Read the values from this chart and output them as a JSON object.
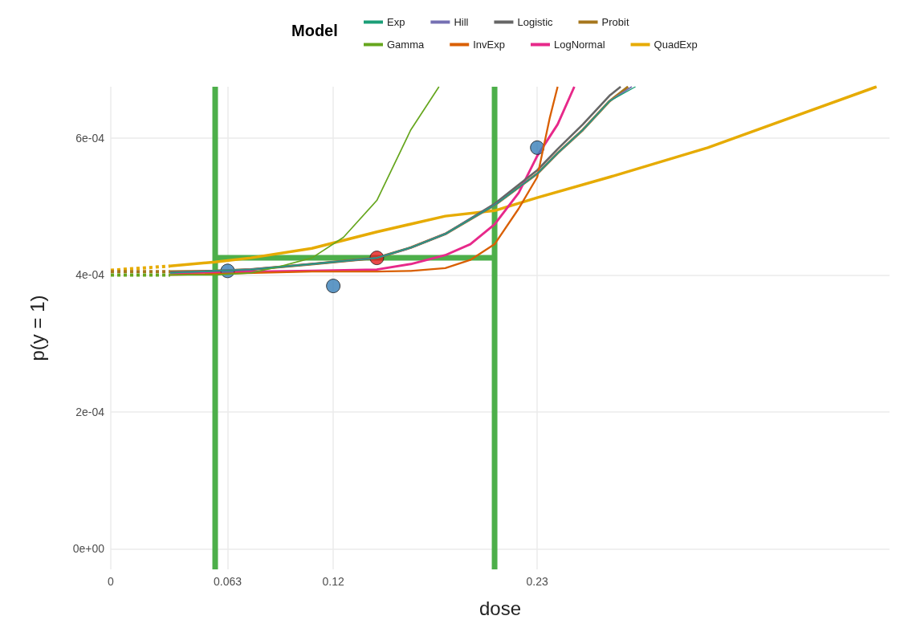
{
  "chart_data": {
    "type": "line",
    "xlabel": "dose",
    "ylabel": "p(y = 1)",
    "legend_title": "Model",
    "legend": "top",
    "grid": true,
    "xlim": [
      0,
      0.42
    ],
    "xticks": [
      0,
      0.063,
      0.12,
      0.23
    ],
    "ylim": [
      -3e-05,
      0.000675
    ],
    "yticks": [
      {
        "value": 0,
        "label": "0e+00"
      },
      {
        "value": 0.0002,
        "label": "2e-04"
      },
      {
        "value": 0.0004,
        "label": "4e-04"
      },
      {
        "value": 0.0006,
        "label": "6e-04"
      }
    ],
    "ref_lines": [
      {
        "axis": "x",
        "value": 0.0563,
        "color": "#4daf4a"
      },
      {
        "axis": "x",
        "value": 0.207,
        "color": "#4daf4a"
      }
    ],
    "series": [
      {
        "name": "Exp",
        "color": "#1b9e77",
        "x": [
          0.032,
          0.0563,
          0.0755,
          0.1085,
          0.1435,
          0.1618,
          0.1804,
          0.207,
          0.22,
          0.23,
          0.241,
          0.2546,
          0.269,
          0.283
        ],
        "values": [
          0.000403,
          0.000406,
          0.000408,
          0.000416,
          0.000425,
          0.00044,
          0.00046,
          0.000502,
          0.000528,
          0.000548,
          0.000578,
          0.000612,
          0.000654,
          0.000675
        ]
      },
      {
        "name": "Gamma",
        "color": "#66a61e",
        "x": [
          0.032,
          0.0438,
          0.0563,
          0.0755,
          0.0905,
          0.1085,
          0.1255,
          0.1435,
          0.1618,
          0.177
        ],
        "values": [
          0.0004,
          0.0004,
          0.0004,
          0.000403,
          0.000412,
          0.000425,
          0.000455,
          0.000509,
          0.000612,
          0.000675
        ]
      },
      {
        "name": "Hill",
        "color": "#7570b3",
        "x": [
          0.032,
          0.0563,
          0.0755,
          0.1085,
          0.1435,
          0.1618,
          0.1804,
          0.207,
          0.22,
          0.23,
          0.241,
          0.2546,
          0.269,
          0.281
        ],
        "values": [
          0.000403,
          0.000406,
          0.000408,
          0.000416,
          0.000425,
          0.00044,
          0.00046,
          0.000502,
          0.000528,
          0.000548,
          0.000578,
          0.000612,
          0.000654,
          0.000675
        ]
      },
      {
        "name": "InvExp",
        "color": "#d95f02",
        "x": [
          0.032,
          0.1085,
          0.1435,
          0.1618,
          0.1804,
          0.1939,
          0.207,
          0.22,
          0.23,
          0.2368,
          0.241
        ],
        "values": [
          0.0004,
          0.000405,
          0.000405,
          0.000406,
          0.00041,
          0.000422,
          0.000445,
          0.000497,
          0.000543,
          0.00063,
          0.000675
        ]
      },
      {
        "name": "Logistic",
        "color": "#666666",
        "x": [
          0.032,
          0.0563,
          0.0755,
          0.1085,
          0.1435,
          0.1618,
          0.1804,
          0.207,
          0.22,
          0.23,
          0.241,
          0.2546,
          0.269,
          0.275
        ],
        "values": [
          0.000404,
          0.000406,
          0.000408,
          0.000416,
          0.000425,
          0.00044,
          0.00046,
          0.000504,
          0.000532,
          0.000553,
          0.000584,
          0.00062,
          0.000662,
          0.000675
        ]
      },
      {
        "name": "LogNormal",
        "color": "#e7298a",
        "x": [
          0.032,
          0.1085,
          0.1435,
          0.1618,
          0.1804,
          0.1939,
          0.207,
          0.22,
          0.23,
          0.241,
          0.25
        ],
        "values": [
          0.000403,
          0.000406,
          0.000408,
          0.000416,
          0.000429,
          0.000445,
          0.000474,
          0.00052,
          0.000574,
          0.00062,
          0.000675
        ]
      },
      {
        "name": "Probit",
        "color": "#a6761d",
        "x": [
          0.032,
          0.0563,
          0.0755,
          0.1085,
          0.1435,
          0.1618,
          0.1804,
          0.207,
          0.22,
          0.23,
          0.241,
          0.2546,
          0.269,
          0.279
        ],
        "values": [
          0.000405,
          0.000406,
          0.000408,
          0.000416,
          0.000425,
          0.00044,
          0.00046,
          0.000502,
          0.000528,
          0.000548,
          0.000578,
          0.000612,
          0.000654,
          0.000675
        ]
      },
      {
        "name": "QuadExp",
        "color": "#e6ab02",
        "x": [
          0.032,
          0.0563,
          0.0755,
          0.1085,
          0.1435,
          0.1804,
          0.207,
          0.23,
          0.269,
          0.322,
          0.413
        ],
        "values": [
          0.000413,
          0.000419,
          0.000425,
          0.000439,
          0.000463,
          0.000486,
          0.000494,
          0.000513,
          0.000543,
          0.000586,
          0.000675
        ]
      },
      {
        "color": "#e6ab02",
        "line_style": "dotted",
        "x": [
          0,
          0.032
        ],
        "values": [
          0.000407,
          0.000413
        ]
      },
      {
        "color": "#a6761d",
        "line_style": "dotted",
        "x": [
          0,
          0.032
        ],
        "values": [
          0.000405,
          0.000405
        ]
      },
      {
        "color": "#66a61e",
        "line_style": "dotted",
        "x": [
          0,
          0.032
        ],
        "values": [
          0.0004,
          0.0004
        ]
      },
      {
        "color": "#4daf4a",
        "line_style": "solid",
        "x": [
          0.0563,
          0.207
        ],
        "values": [
          0.000425,
          0.000425
        ]
      },
      {
        "type": "scatter",
        "marker": "circle",
        "color": "#377eb8",
        "x": [
          0.063,
          0.12,
          0.23
        ],
        "values": [
          0.000406,
          0.000384,
          0.000586
        ]
      },
      {
        "type": "scatter",
        "marker": "circle",
        "color": "#e41a1c",
        "x": [
          0.1435
        ],
        "values": [
          0.000425
        ]
      }
    ]
  }
}
